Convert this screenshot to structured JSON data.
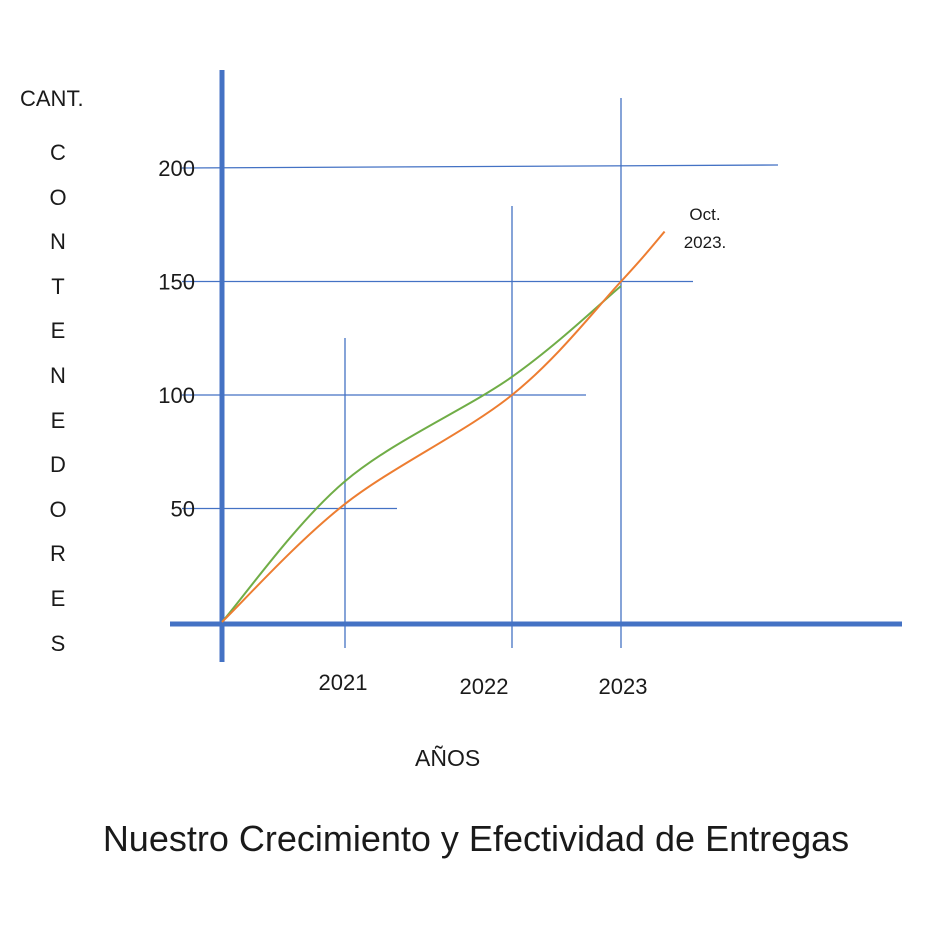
{
  "chart_data": {
    "type": "line",
    "title": "Nuestro Crecimiento y Efectividad de Entregas",
    "xlabel": "AÑOS",
    "ylabel_top": "CANT.",
    "ylabel_vertical": "CONTENEDORES",
    "x_ticks": [
      "2021",
      "2022",
      "2023"
    ],
    "y_ticks": [
      50,
      100,
      150,
      200
    ],
    "ylim": [
      0,
      200
    ],
    "annotation": [
      "Oct.",
      "2023."
    ],
    "series": [
      {
        "color": "#70ad47",
        "points": [
          [
            2020,
            0
          ],
          [
            2021,
            62
          ],
          [
            2022,
            108
          ],
          [
            2023,
            148
          ]
        ]
      },
      {
        "color": "#ed7d31",
        "points": [
          [
            2020,
            0
          ],
          [
            2021,
            52
          ],
          [
            2022,
            100
          ],
          [
            2023,
            150
          ],
          [
            2023.4,
            172
          ]
        ]
      }
    ]
  }
}
